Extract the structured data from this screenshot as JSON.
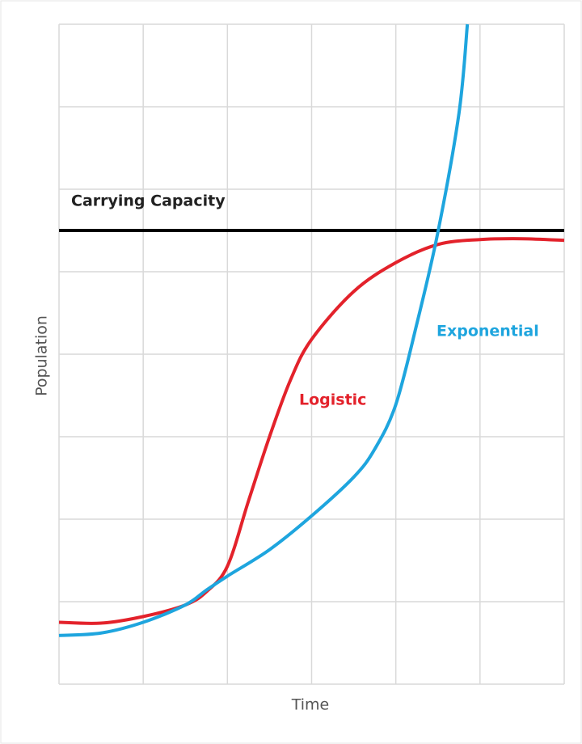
{
  "chart_data": {
    "type": "line",
    "xlabel": "Time",
    "ylabel": "Population",
    "xlim": [
      0,
      6
    ],
    "ylim": [
      0,
      8
    ],
    "xticks": [
      0,
      1,
      2,
      3,
      4,
      5,
      6
    ],
    "yticks": [
      0,
      1,
      2,
      3,
      4,
      5,
      6,
      7,
      8
    ],
    "grid": true,
    "series": [
      {
        "name": "Logistic",
        "color": "#e3222b",
        "x": [
          0,
          0.5,
          1,
          1.5,
          1.75,
          2,
          2.25,
          2.5,
          2.75,
          3,
          3.5,
          4,
          4.5,
          5,
          5.5,
          6
        ],
        "values": [
          0.75,
          0.74,
          0.82,
          0.96,
          1.12,
          1.43,
          2.22,
          3.0,
          3.69,
          4.18,
          4.76,
          5.11,
          5.33,
          5.39,
          5.4,
          5.38
        ]
      },
      {
        "name": "Exponential",
        "color": "#1ea5de",
        "x": [
          0,
          0.5,
          1,
          1.5,
          1.75,
          2,
          2.5,
          3,
          3.5,
          3.75,
          4,
          4.25,
          4.5,
          4.75,
          4.85
        ],
        "values": [
          0.59,
          0.62,
          0.75,
          0.96,
          1.14,
          1.31,
          1.63,
          2.04,
          2.51,
          2.85,
          3.39,
          4.37,
          5.48,
          6.92,
          8.0
        ]
      }
    ],
    "carrying_capacity": {
      "label": "Carrying Capacity",
      "value": 5.5,
      "color": "#000000"
    }
  }
}
